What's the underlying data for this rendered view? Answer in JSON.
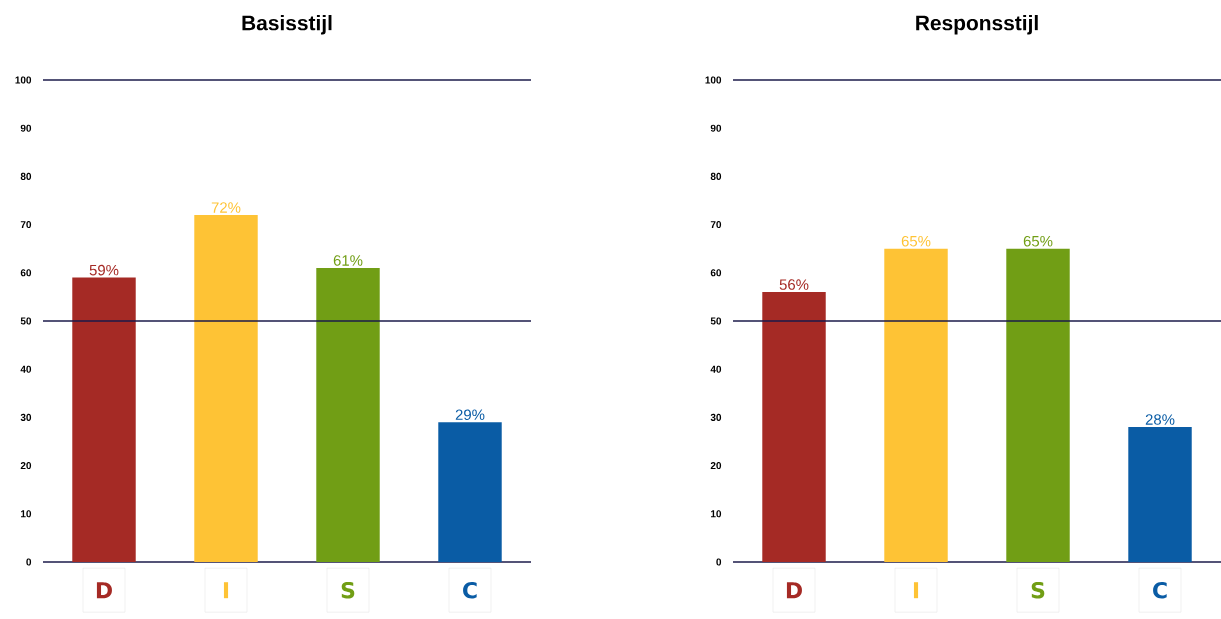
{
  "chart_data": [
    {
      "type": "bar",
      "title": "Basisstijl",
      "categories": [
        "D",
        "I",
        "S",
        "C"
      ],
      "values": [
        59,
        72,
        61,
        29
      ],
      "value_labels": [
        "59%",
        "72%",
        "61%",
        "29%"
      ],
      "colors": [
        "#a52a25",
        "#fec335",
        "#719e15",
        "#0a5ca5"
      ],
      "ylim": [
        0,
        100
      ],
      "yticks": [
        0,
        10,
        20,
        30,
        40,
        50,
        60,
        70,
        80,
        90,
        100
      ],
      "ref_lines": [
        {
          "axis": "y",
          "value": 50,
          "color": "#1b1a4a"
        },
        {
          "axis": "y",
          "value": 100,
          "color": "#1b1a4a"
        }
      ]
    },
    {
      "type": "bar",
      "title": "Responsstijl",
      "categories": [
        "D",
        "I",
        "S",
        "C"
      ],
      "values": [
        56,
        65,
        65,
        28
      ],
      "value_labels": [
        "56%",
        "65%",
        "65%",
        "28%"
      ],
      "colors": [
        "#a52a25",
        "#fec335",
        "#719e15",
        "#0a5ca5"
      ],
      "ylim": [
        0,
        100
      ],
      "yticks": [
        0,
        10,
        20,
        30,
        40,
        50,
        60,
        70,
        80,
        90,
        100
      ],
      "ref_lines": [
        {
          "axis": "y",
          "value": 50,
          "color": "#1b1a4a"
        },
        {
          "axis": "y",
          "value": 100,
          "color": "#1b1a4a"
        }
      ]
    }
  ]
}
